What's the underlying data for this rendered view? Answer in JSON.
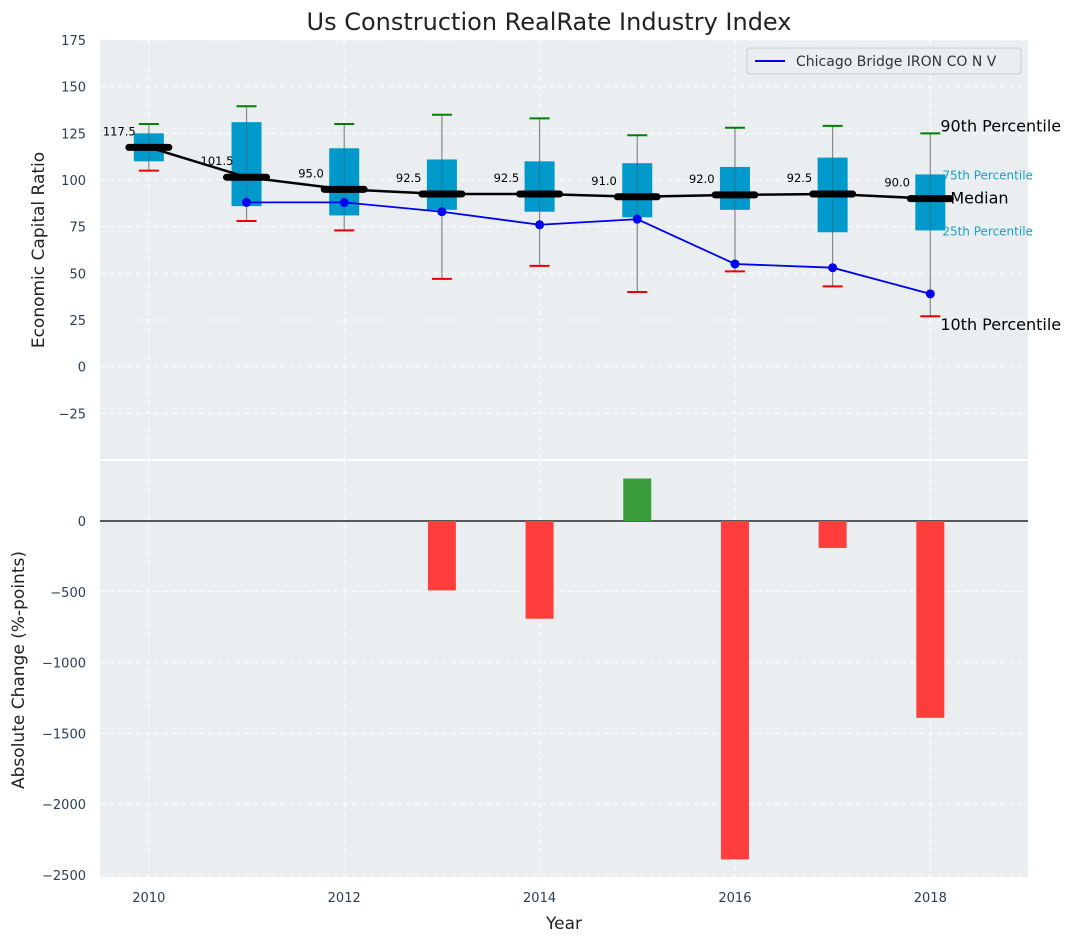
{
  "chart_data": [
    {
      "type": "box",
      "title": "Us Construction RealRate Industry Index",
      "xlabel": "",
      "ylabel": "Economic Capital Ratio",
      "ylim": [
        -50,
        175
      ],
      "yticks": [
        -25,
        0,
        25,
        50,
        75,
        100,
        125,
        150,
        175
      ],
      "ytick_labels": [
        "−25",
        "0",
        "25",
        "50",
        "75",
        "100",
        "125",
        "150",
        "175"
      ],
      "x": [
        2010,
        2011,
        2012,
        2013,
        2014,
        2015,
        2016,
        2017,
        2018
      ],
      "p90": [
        130,
        139.5,
        130,
        135,
        133,
        124,
        128,
        129,
        125
      ],
      "p75": [
        125,
        131,
        117,
        111,
        110,
        109,
        107,
        112,
        103
      ],
      "median": [
        117.5,
        101.5,
        95.0,
        92.5,
        92.5,
        91.0,
        92.0,
        92.5,
        90.0
      ],
      "median_labels": [
        "117.5",
        "101.5",
        "95.0",
        "92.5",
        "92.5",
        "91.0",
        "92.0",
        "92.5",
        "90.0"
      ],
      "p25": [
        110,
        86,
        81,
        84,
        83,
        80,
        84,
        72,
        73
      ],
      "p10": [
        105,
        78,
        73,
        47,
        54,
        40,
        51,
        43,
        27
      ],
      "series": [
        {
          "name": "Chicago Bridge IRON CO N V",
          "x": [
            2011,
            2012,
            2013,
            2014,
            2015,
            2016,
            2017,
            2018
          ],
          "values": [
            88,
            88,
            83,
            76,
            79,
            55,
            53,
            39
          ],
          "color": "#0000ee"
        }
      ],
      "annotations": [
        "90th Percentile",
        "75th Percentile",
        "Median",
        "25th Percentile",
        "10th Percentile"
      ],
      "legend": {
        "label": "Chicago Bridge IRON CO N V",
        "placement": "top-right"
      },
      "grid": true,
      "colors": {
        "box": "#0099cc",
        "median": "#000000",
        "p90": "#008000",
        "p10": "#ee0000",
        "whisker": "#888888",
        "annot_box": "#1a9fc9",
        "bg": "#eaeef0"
      }
    },
    {
      "type": "bar",
      "xlabel": "Year",
      "ylabel": "Absolute Change (%-points)",
      "ylim": [
        -2500,
        300
      ],
      "yticks": [
        0,
        -500,
        -1000,
        -1500,
        -2000,
        -2500
      ],
      "ytick_labels": [
        "0",
        "−500",
        "−1000",
        "−1500",
        "−2000",
        "−2500"
      ],
      "xticks": [
        2010,
        2012,
        2014,
        2016,
        2018
      ],
      "xtick_labels": [
        "2010",
        "2012",
        "2014",
        "2016",
        "2018"
      ],
      "xlim": [
        2009.5,
        2019
      ],
      "categories": [
        2013,
        2014,
        2015,
        2016,
        2017,
        2018
      ],
      "values": [
        -490,
        -690,
        300,
        -2390,
        -190,
        -1390
      ],
      "grid": true,
      "colors": {
        "positive": "#3a9c3a",
        "negative": "#ff3d3d"
      }
    }
  ]
}
